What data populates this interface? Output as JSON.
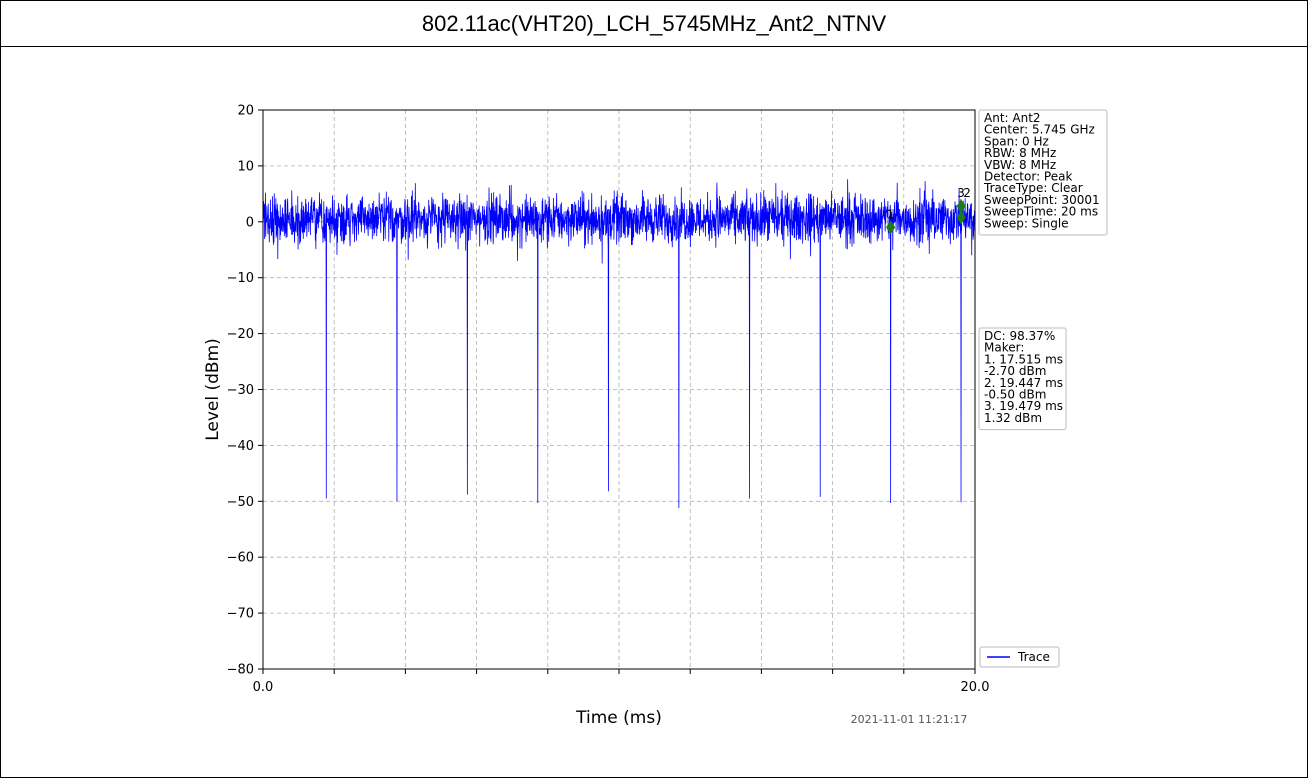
{
  "chart_data": {
    "type": "line",
    "title": "802.11ac(VHT20)_LCH_5745MHz_Ant2_NTNV",
    "xlabel": "Time (ms)",
    "ylabel": "Level (dBm)",
    "xlim": [
      0.0,
      20.0
    ],
    "ylim": [
      -80,
      20
    ],
    "x_tick_labels": [
      "0.0",
      "20.0"
    ],
    "x_minor_ticks": [
      2,
      4,
      6,
      8,
      10,
      12,
      14,
      16,
      18
    ],
    "y_ticks": [
      20,
      10,
      0,
      -10,
      -20,
      -30,
      -40,
      -50,
      -60,
      -70,
      -80
    ],
    "y_tick_labels": [
      "20",
      "10",
      "0",
      "−10",
      "−20",
      "−30",
      "−40",
      "−50",
      "−60",
      "−70",
      "−80"
    ],
    "grid": true,
    "series": [
      {
        "name": "Trace",
        "color": "#0000ff",
        "noise_band_dbm": [
          -7,
          8
        ],
        "noise_center_dbm": 0.5,
        "dips_ms": [
          1.78,
          3.76,
          5.74,
          7.72,
          9.7,
          11.68,
          13.67,
          15.65,
          17.63,
          19.61
        ],
        "dips_min_dbm": [
          -49.5,
          -50.0,
          -48.8,
          -50.3,
          -48.2,
          -51.2,
          -49.5,
          -49.2,
          -50.3,
          -50.2
        ]
      }
    ],
    "markers": [
      {
        "label": "1",
        "x": 17.515,
        "y": -2.7,
        "display_x": 17.63,
        "display_y": -1.0
      },
      {
        "label": "2",
        "x": 19.447,
        "y": -0.5,
        "display_x": 19.61,
        "display_y": 0.8
      },
      {
        "label": "3",
        "x": 19.479,
        "y": 1.32,
        "display_x": 19.61,
        "display_y": 2.8
      }
    ],
    "marker_color": "#1e7a1e",
    "legend": {
      "placement": "bottom-right",
      "entries": [
        "Trace"
      ]
    },
    "info_box": [
      "Ant: Ant2",
      "Center: 5.745 GHz",
      "Span: 0 Hz",
      "RBW: 8 MHz",
      "VBW: 8 MHz",
      "Detector: Peak",
      "TraceType: Clear",
      "SweepPoint: 30001",
      "SweepTime: 20 ms",
      "Sweep: Single"
    ],
    "marker_box": [
      "DC: 98.37%",
      "Maker:",
      "1. 17.515 ms",
      "    -2.70 dBm",
      "2. 19.447 ms",
      "    -0.50 dBm",
      "3. 19.479 ms",
      "    1.32 dBm"
    ],
    "timestamp": "2021-11-01 11:21:17"
  }
}
